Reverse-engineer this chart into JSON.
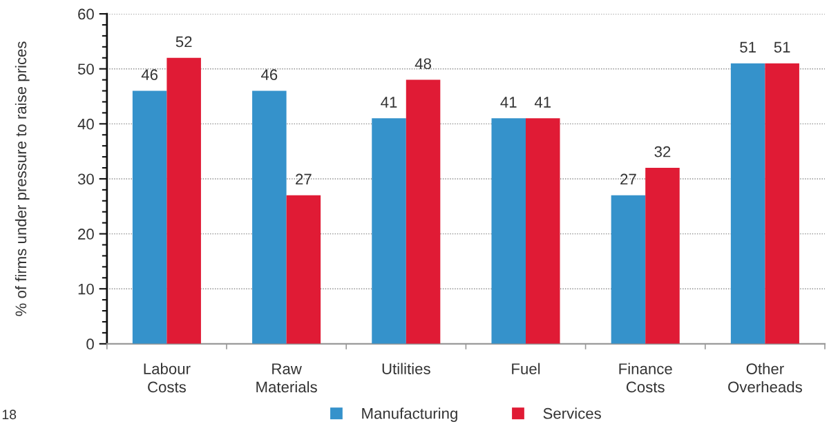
{
  "chart_data": {
    "type": "bar",
    "ylabel": "% of firms under pressure to raise prices",
    "categories": [
      "Labour\nCosts",
      "Raw\nMaterials",
      "Utilities",
      "Fuel",
      "Finance\nCosts",
      "Other\nOverheads"
    ],
    "series": [
      {
        "name": "Manufacturing",
        "color": "#3592cb",
        "values": [
          46,
          46,
          41,
          41,
          27,
          51
        ]
      },
      {
        "name": "Services",
        "color": "#e01b35",
        "values": [
          52,
          27,
          48,
          41,
          32,
          51
        ]
      }
    ],
    "ylim": [
      0,
      60
    ],
    "yticks": [
      0,
      {
        "value": 2,
        "label": null
      },
      {
        "value": 4,
        "label": null
      },
      {
        "value": 6,
        "label": null
      },
      {
        "value": 8,
        "label": null
      },
      10,
      {
        "value": 12,
        "label": null
      },
      {
        "value": 14,
        "label": null
      },
      {
        "value": 16,
        "label": null
      },
      {
        "value": 18,
        "label": null
      },
      20,
      {
        "value": 22,
        "label": null
      },
      {
        "value": 24,
        "label": null
      },
      {
        "value": 26,
        "label": null
      },
      {
        "value": 28,
        "label": null
      },
      30,
      {
        "value": 32,
        "label": null
      },
      {
        "value": 34,
        "label": null
      },
      {
        "value": 36,
        "label": null
      },
      {
        "value": 38,
        "label": null
      },
      40,
      {
        "value": 42,
        "label": null
      },
      {
        "value": 44,
        "label": null
      },
      {
        "value": 46,
        "label": null
      },
      {
        "value": 48,
        "label": null
      },
      50,
      {
        "value": 52,
        "label": null
      },
      {
        "value": 54,
        "label": null
      },
      {
        "value": 56,
        "label": null
      },
      {
        "value": 58,
        "label": null
      },
      60
    ],
    "grid": "y",
    "data_labels": true,
    "legend": "bottom",
    "annotations": [
      "18"
    ]
  }
}
